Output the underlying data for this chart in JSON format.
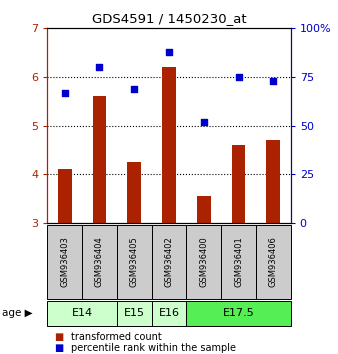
{
  "title": "GDS4591 / 1450230_at",
  "samples": [
    "GSM936403",
    "GSM936404",
    "GSM936405",
    "GSM936402",
    "GSM936400",
    "GSM936401",
    "GSM936406"
  ],
  "bar_values": [
    4.1,
    5.6,
    4.25,
    6.2,
    3.55,
    4.6,
    4.7
  ],
  "dot_values": [
    67,
    80,
    69,
    88,
    52,
    75,
    73
  ],
  "bar_color": "#aa2200",
  "dot_color": "#0000cc",
  "ylim_left": [
    3,
    7
  ],
  "ylim_right": [
    0,
    100
  ],
  "yticks_left": [
    3,
    4,
    5,
    6,
    7
  ],
  "yticks_right": [
    0,
    25,
    50,
    75,
    100
  ],
  "ytick_labels_right": [
    "0",
    "25",
    "50",
    "75",
    "100%"
  ],
  "age_info": [
    {
      "label": "E14",
      "indices": [
        0,
        1
      ],
      "color": "#ccffcc"
    },
    {
      "label": "E15",
      "indices": [
        2
      ],
      "color": "#ccffcc"
    },
    {
      "label": "E16",
      "indices": [
        3
      ],
      "color": "#ccffcc"
    },
    {
      "label": "E17.5",
      "indices": [
        4,
        5,
        6
      ],
      "color": "#55ee55"
    }
  ],
  "sample_box_color": "#cccccc",
  "legend_label_bar": "transformed count",
  "legend_label_dot": "percentile rank within the sample",
  "bar_width": 0.4
}
